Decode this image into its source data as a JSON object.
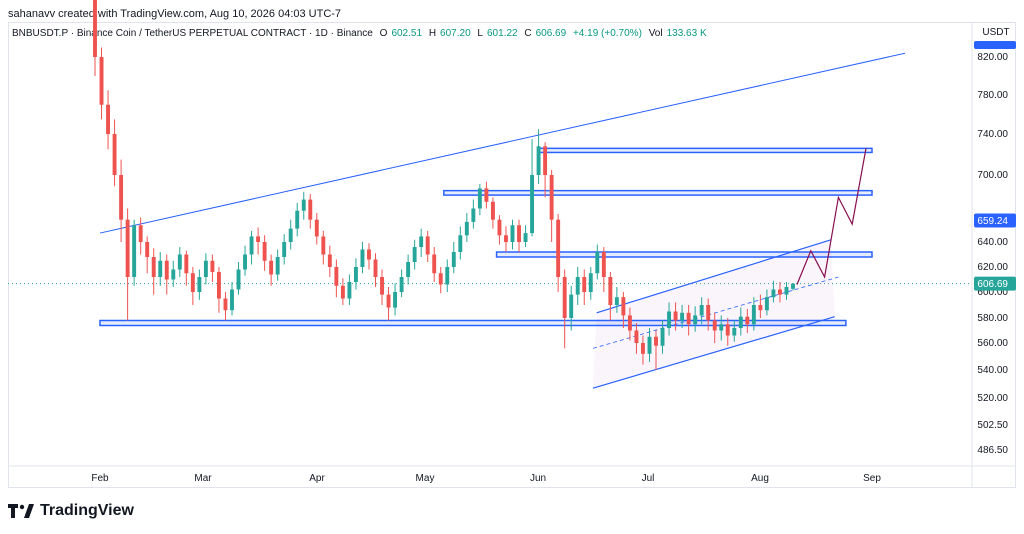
{
  "creator_line": "sahanavv created with TradingView.com, Aug 10, 2026 04:03 UTC-7",
  "header": {
    "symbol": "BNBUSDT.P · Binance Coin / TetherUS PERPETUAL CONTRACT · 1D · Binance",
    "o_label": "O",
    "o_value": "602.51",
    "h_label": "H",
    "h_value": "607.20",
    "l_label": "L",
    "l_value": "601.22",
    "c_label": "C",
    "c_value": "606.69",
    "change": "+4.19 (+0.70%)",
    "vol_label": "Vol",
    "vol_value": "133.63 K"
  },
  "currency": "USDT",
  "logo": {
    "text": "TradingView"
  },
  "colors": {
    "up": "#26a69a",
    "down": "#ef5350",
    "line": "#2962ff",
    "accent": "#2962ff",
    "dark_badge": "#131722",
    "forecast": "#880e4f"
  },
  "chart_data": {
    "type": "candlestick",
    "price_scale_ticks": [
      "820.00",
      "780.00",
      "740.00",
      "700.00",
      "640.00",
      "620.00",
      "600.00",
      "580.00",
      "560.00",
      "540.00",
      "520.00",
      "502.50",
      "486.50"
    ],
    "time_scale_ticks": [
      "Feb",
      "Mar",
      "Apr",
      "May",
      "Jun",
      "Jul",
      "Aug",
      "Sep"
    ],
    "price_badges": [
      {
        "value": "659.24",
        "style": "blue"
      },
      {
        "value": "606.69",
        "style": "teal"
      }
    ],
    "last_price": 606.69,
    "horizontal_zones": [
      {
        "low": 574,
        "high": 578,
        "from": "Feb",
        "to": "Aug-24"
      },
      {
        "low": 628,
        "high": 632,
        "from": "May-20",
        "to": "Sep"
      },
      {
        "low": 682,
        "high": 686,
        "from": "May-06",
        "to": "Sep"
      },
      {
        "low": 722,
        "high": 726,
        "from": "Jun",
        "to": "Sep"
      }
    ],
    "trendline_top": {
      "from": [
        "Feb-01",
        648
      ],
      "to": [
        "Sep-10",
        824
      ]
    },
    "channel": {
      "upper": [
        [
          "Jun-17",
          584
        ],
        [
          "Aug-20",
          642
        ]
      ],
      "lower": [
        [
          "Jun-16",
          527
        ],
        [
          "Aug-21",
          581
        ]
      ],
      "mid": [
        [
          "Jun-16",
          556
        ],
        [
          "Aug-22",
          612
        ]
      ]
    },
    "forecast_path": [
      606,
      633,
      612,
      680,
      656,
      726
    ],
    "candles": [
      [
        930,
        820,
        945,
        800
      ],
      [
        820,
        770,
        830,
        755
      ],
      [
        770,
        740,
        785,
        725
      ],
      [
        740,
        700,
        755,
        690
      ],
      [
        700,
        660,
        715,
        640
      ],
      [
        660,
        612,
        670,
        578
      ],
      [
        612,
        655,
        660,
        605
      ],
      [
        655,
        640,
        662,
        630
      ],
      [
        640,
        628,
        645,
        615
      ],
      [
        628,
        612,
        635,
        598
      ],
      [
        612,
        625,
        632,
        605
      ],
      [
        625,
        610,
        630,
        598
      ],
      [
        610,
        618,
        625,
        604
      ],
      [
        618,
        630,
        636,
        612
      ],
      [
        630,
        615,
        633,
        605
      ],
      [
        615,
        600,
        620,
        590
      ],
      [
        600,
        612,
        618,
        594
      ],
      [
        612,
        625,
        631,
        606
      ],
      [
        625,
        616,
        630,
        608
      ],
      [
        616,
        595,
        620,
        584
      ],
      [
        595,
        586,
        600,
        578
      ],
      [
        586,
        602,
        608,
        582
      ],
      [
        602,
        618,
        624,
        598
      ],
      [
        618,
        630,
        637,
        613
      ],
      [
        630,
        645,
        650,
        622
      ],
      [
        645,
        640,
        653,
        630
      ],
      [
        640,
        625,
        646,
        617
      ],
      [
        625,
        614,
        630,
        605
      ],
      [
        614,
        628,
        634,
        609
      ],
      [
        628,
        640,
        647,
        622
      ],
      [
        640,
        652,
        660,
        634
      ],
      [
        652,
        668,
        675,
        645
      ],
      [
        668,
        678,
        685,
        660
      ],
      [
        678,
        660,
        683,
        652
      ],
      [
        660,
        645,
        666,
        638
      ],
      [
        645,
        630,
        650,
        622
      ],
      [
        630,
        620,
        637,
        612
      ],
      [
        620,
        605,
        626,
        596
      ],
      [
        605,
        595,
        611,
        590
      ],
      [
        595,
        608,
        614,
        590
      ],
      [
        608,
        620,
        627,
        602
      ],
      [
        620,
        634,
        640,
        615
      ],
      [
        634,
        626,
        639,
        618
      ],
      [
        626,
        612,
        631,
        604
      ],
      [
        612,
        598,
        618,
        590
      ],
      [
        598,
        588,
        604,
        578
      ],
      [
        588,
        600,
        607,
        582
      ],
      [
        600,
        612,
        618,
        596
      ],
      [
        612,
        624,
        630,
        606
      ],
      [
        624,
        636,
        642,
        618
      ],
      [
        636,
        645,
        652,
        628
      ],
      [
        645,
        630,
        650,
        624
      ],
      [
        630,
        615,
        636,
        608
      ],
      [
        615,
        606,
        620,
        599
      ],
      [
        606,
        620,
        626,
        600
      ],
      [
        620,
        632,
        640,
        615
      ],
      [
        632,
        646,
        654,
        626
      ],
      [
        646,
        658,
        666,
        640
      ],
      [
        658,
        670,
        678,
        652
      ],
      [
        670,
        688,
        692,
        664
      ],
      [
        688,
        676,
        694,
        670
      ],
      [
        676,
        660,
        680,
        652
      ],
      [
        660,
        646,
        664,
        638
      ],
      [
        646,
        640,
        654,
        632
      ],
      [
        640,
        655,
        660,
        634
      ],
      [
        655,
        640,
        660,
        632
      ],
      [
        640,
        648,
        655,
        636
      ],
      [
        648,
        700,
        735,
        645
      ],
      [
        700,
        728,
        745,
        692
      ],
      [
        728,
        700,
        732,
        680
      ],
      [
        700,
        660,
        705,
        640
      ],
      [
        660,
        612,
        665,
        600
      ],
      [
        612,
        580,
        618,
        556
      ],
      [
        580,
        598,
        605,
        570
      ],
      [
        598,
        612,
        620,
        590
      ],
      [
        612,
        600,
        618,
        590
      ],
      [
        600,
        615,
        620,
        594
      ],
      [
        615,
        632,
        638,
        610
      ],
      [
        632,
        612,
        636,
        600
      ],
      [
        612,
        590,
        616,
        578
      ],
      [
        590,
        596,
        604,
        584
      ],
      [
        596,
        582,
        600,
        572
      ],
      [
        582,
        570,
        588,
        562
      ],
      [
        570,
        560,
        576,
        552
      ],
      [
        560,
        552,
        566,
        544
      ],
      [
        552,
        565,
        572,
        546
      ],
      [
        565,
        558,
        570,
        540
      ],
      [
        558,
        572,
        578,
        552
      ],
      [
        572,
        585,
        592,
        566
      ],
      [
        585,
        578,
        592,
        570
      ],
      [
        578,
        584,
        590,
        572
      ],
      [
        584,
        575,
        590,
        566
      ],
      [
        575,
        582,
        589,
        569
      ],
      [
        582,
        590,
        596,
        575
      ],
      [
        590,
        578,
        595,
        570
      ],
      [
        578,
        570,
        584,
        560
      ],
      [
        570,
        575,
        582,
        562
      ],
      [
        575,
        566,
        580,
        558
      ],
      [
        566,
        572,
        578,
        561
      ],
      [
        572,
        581,
        588,
        566
      ],
      [
        581,
        575,
        587,
        568
      ],
      [
        575,
        590,
        596,
        570
      ],
      [
        590,
        586,
        598,
        580
      ],
      [
        586,
        596,
        602,
        582
      ],
      [
        596,
        602,
        609,
        592
      ],
      [
        602,
        598,
        608,
        592
      ],
      [
        598,
        604,
        608,
        594
      ],
      [
        602.51,
        606.69,
        607.2,
        601.22
      ]
    ]
  }
}
